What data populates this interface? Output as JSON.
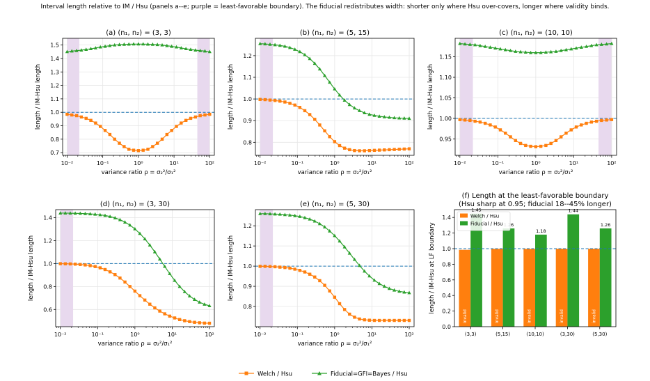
{
  "figure": {
    "suptitle": "Interval length relative to IM / Hsu (panels a--e; purple = least-favorable boundary). The fiducial redistributes width: shorter only where Hsu over-covers, longer where validity binds."
  },
  "colors": {
    "welch": "#ff7f0e",
    "fiducial": "#2ca02c",
    "reference_line": "#1f77b4",
    "lf_shade": "#e8d9ee",
    "grid": "#e6e6e6"
  },
  "legend": {
    "welch": "Welch / Hsu",
    "fiducial": "Fiducial=GFI=Bayes / Hsu"
  },
  "chart_data": [
    {
      "id": "a",
      "type": "line",
      "title": "(a) (n₁, n₂) = (3, 3)",
      "xlabel": "variance ratio ρ = σ₂²/σ₁²",
      "ylabel": "length / IM-Hsu length",
      "xscale": "log",
      "xlim": [
        0.0075,
        135
      ],
      "ylim": [
        0.68,
        1.55
      ],
      "yticks": [
        0.7,
        0.8,
        0.9,
        1.0,
        1.1,
        1.2,
        1.3,
        1.4,
        1.5
      ],
      "ytick_labels": [
        "0.7",
        "0.8",
        "0.9",
        "1.0",
        "1.1",
        "1.2",
        "1.3",
        "1.4",
        "1.5"
      ],
      "xtick_labels": [
        "10⁻²",
        "10⁻¹",
        "10⁰",
        "10¹",
        "10²"
      ],
      "lf_bands": [
        [
          0.01,
          0.022
        ],
        [
          45,
          100
        ]
      ],
      "reference_y": 1.0,
      "grid": true,
      "series": [
        {
          "name": "Welch / Hsu",
          "key": "welch",
          "marker": "square",
          "values": [
            0.985,
            0.98,
            0.975,
            0.965,
            0.955,
            0.94,
            0.92,
            0.895,
            0.865,
            0.835,
            0.8,
            0.77,
            0.745,
            0.725,
            0.718,
            0.715,
            0.718,
            0.725,
            0.745,
            0.77,
            0.8,
            0.835,
            0.865,
            0.895,
            0.92,
            0.94,
            0.955,
            0.965,
            0.975,
            0.98,
            0.985
          ]
        },
        {
          "name": "Fiducial=GFI=Bayes / Hsu",
          "key": "fiducial",
          "marker": "triangle",
          "values": [
            1.45,
            1.455,
            1.458,
            1.462,
            1.467,
            1.472,
            1.478,
            1.485,
            1.49,
            1.495,
            1.5,
            1.503,
            1.505,
            1.506,
            1.507,
            1.507,
            1.507,
            1.506,
            1.505,
            1.503,
            1.5,
            1.495,
            1.49,
            1.485,
            1.478,
            1.472,
            1.467,
            1.462,
            1.458,
            1.455,
            1.45
          ]
        }
      ]
    },
    {
      "id": "b",
      "type": "line",
      "title": "(b) (n₁, n₂) = (5, 15)",
      "xlabel": "variance ratio ρ = σ₂²/σ₁²",
      "ylabel": "length / IM-Hsu length",
      "xscale": "log",
      "xlim": [
        0.0075,
        135
      ],
      "ylim": [
        0.74,
        1.28
      ],
      "yticks": [
        0.8,
        0.9,
        1.0,
        1.1,
        1.2
      ],
      "ytick_labels": [
        "0.8",
        "0.9",
        "1.0",
        "1.1",
        "1.2"
      ],
      "xtick_labels": [
        "10⁻²",
        "10⁻¹",
        "10⁰",
        "10¹",
        "10²"
      ],
      "lf_bands": [
        [
          0.01,
          0.022
        ]
      ],
      "reference_y": 1.0,
      "grid": true,
      "series": [
        {
          "name": "Welch / Hsu",
          "key": "welch",
          "marker": "square",
          "values": [
            0.998,
            0.997,
            0.995,
            0.993,
            0.99,
            0.986,
            0.98,
            0.972,
            0.961,
            0.946,
            0.928,
            0.906,
            0.88,
            0.853,
            0.826,
            0.803,
            0.785,
            0.773,
            0.766,
            0.762,
            0.761,
            0.761,
            0.762,
            0.763,
            0.764,
            0.765,
            0.766,
            0.767,
            0.768,
            0.769,
            0.77
          ]
        },
        {
          "name": "Fiducial=GFI=Bayes / Hsu",
          "key": "fiducial",
          "marker": "triangle",
          "values": [
            1.255,
            1.254,
            1.252,
            1.25,
            1.247,
            1.243,
            1.237,
            1.229,
            1.218,
            1.204,
            1.186,
            1.164,
            1.138,
            1.108,
            1.077,
            1.046,
            1.018,
            0.994,
            0.974,
            0.958,
            0.946,
            0.936,
            0.929,
            0.924,
            0.92,
            0.917,
            0.915,
            0.913,
            0.912,
            0.911,
            0.91
          ]
        }
      ]
    },
    {
      "id": "c",
      "type": "line",
      "title": "(c) (n₁, n₂) = (10, 10)",
      "xlabel": "variance ratio ρ = σ₂²/σ₁²",
      "ylabel": "length / IM-Hsu length",
      "xscale": "log",
      "xlim": [
        0.0075,
        135
      ],
      "ylim": [
        0.91,
        1.195
      ],
      "yticks": [
        0.95,
        1.0,
        1.05,
        1.1,
        1.15
      ],
      "ytick_labels": [
        "0.95",
        "1.00",
        "1.05",
        "1.10",
        "1.15"
      ],
      "xtick_labels": [
        "10⁻²",
        "10⁻¹",
        "10⁰",
        "10¹",
        "10²"
      ],
      "lf_bands": [
        [
          0.01,
          0.022
        ],
        [
          45,
          100
        ]
      ],
      "reference_y": 1.0,
      "grid": true,
      "series": [
        {
          "name": "Welch / Hsu",
          "key": "welch",
          "marker": "square",
          "values": [
            0.997,
            0.996,
            0.995,
            0.993,
            0.991,
            0.988,
            0.984,
            0.979,
            0.972,
            0.964,
            0.955,
            0.946,
            0.939,
            0.934,
            0.932,
            0.931,
            0.932,
            0.934,
            0.939,
            0.946,
            0.955,
            0.964,
            0.972,
            0.979,
            0.984,
            0.988,
            0.991,
            0.993,
            0.995,
            0.996,
            0.997
          ]
        },
        {
          "name": "Fiducial=GFI=Bayes / Hsu",
          "key": "fiducial",
          "marker": "triangle",
          "values": [
            1.182,
            1.181,
            1.18,
            1.179,
            1.177,
            1.175,
            1.173,
            1.171,
            1.169,
            1.167,
            1.165,
            1.163,
            1.162,
            1.161,
            1.16,
            1.16,
            1.16,
            1.161,
            1.162,
            1.163,
            1.165,
            1.167,
            1.169,
            1.171,
            1.173,
            1.175,
            1.177,
            1.179,
            1.18,
            1.181,
            1.182
          ]
        }
      ]
    },
    {
      "id": "d",
      "type": "line",
      "title": "(d) (n₁, n₂) = (3, 30)",
      "xlabel": "variance ratio ρ = σ₂²/σ₁²",
      "ylabel": "length / IM-Hsu length",
      "xscale": "log",
      "xlim": [
        0.0075,
        135
      ],
      "ylim": [
        0.45,
        1.47
      ],
      "yticks": [
        0.6,
        0.8,
        1.0,
        1.2,
        1.4
      ],
      "ytick_labels": [
        "0.6",
        "0.8",
        "1.0",
        "1.2",
        "1.4"
      ],
      "xtick_labels": [
        "10⁻²",
        "10⁻¹",
        "10⁰",
        "10¹",
        "10²"
      ],
      "lf_bands": [
        [
          0.01,
          0.022
        ]
      ],
      "reference_y": 1.0,
      "grid": true,
      "series": [
        {
          "name": "Welch / Hsu",
          "key": "welch",
          "marker": "square",
          "values": [
            0.999,
            0.998,
            0.997,
            0.995,
            0.992,
            0.988,
            0.982,
            0.974,
            0.963,
            0.948,
            0.928,
            0.904,
            0.874,
            0.839,
            0.8,
            0.76,
            0.72,
            0.682,
            0.646,
            0.614,
            0.586,
            0.562,
            0.542,
            0.526,
            0.512,
            0.502,
            0.494,
            0.488,
            0.484,
            0.481,
            0.48
          ]
        },
        {
          "name": "Fiducial=GFI=Bayes / Hsu",
          "key": "fiducial",
          "marker": "triangle",
          "values": [
            1.44,
            1.44,
            1.439,
            1.438,
            1.437,
            1.435,
            1.433,
            1.43,
            1.425,
            1.419,
            1.41,
            1.398,
            1.382,
            1.361,
            1.335,
            1.302,
            1.262,
            1.215,
            1.161,
            1.102,
            1.039,
            0.975,
            0.912,
            0.853,
            0.8,
            0.755,
            0.717,
            0.687,
            0.663,
            0.645,
            0.632
          ]
        }
      ]
    },
    {
      "id": "e",
      "type": "line",
      "title": "(e) (n₁, n₂) = (5, 30)",
      "xlabel": "variance ratio ρ = σ₂²/σ₁²",
      "ylabel": "length / IM-Hsu length",
      "xscale": "log",
      "xlim": [
        0.0075,
        135
      ],
      "ylim": [
        0.7,
        1.28
      ],
      "yticks": [
        0.8,
        0.9,
        1.0,
        1.1,
        1.2
      ],
      "ytick_labels": [
        "0.8",
        "0.9",
        "1.0",
        "1.1",
        "1.2"
      ],
      "xtick_labels": [
        "10⁻²",
        "10⁻¹",
        "10⁰",
        "10¹",
        "10²"
      ],
      "lf_bands": [
        [
          0.01,
          0.022
        ]
      ],
      "reference_y": 1.0,
      "grid": true,
      "series": [
        {
          "name": "Welch / Hsu",
          "key": "welch",
          "marker": "square",
          "values": [
            0.999,
            0.999,
            0.998,
            0.997,
            0.995,
            0.993,
            0.99,
            0.985,
            0.979,
            0.971,
            0.96,
            0.946,
            0.928,
            0.905,
            0.877,
            0.846,
            0.814,
            0.785,
            0.762,
            0.747,
            0.738,
            0.734,
            0.732,
            0.731,
            0.731,
            0.731,
            0.731,
            0.731,
            0.731,
            0.731,
            0.731
          ]
        },
        {
          "name": "Fiducial=GFI=Bayes / Hsu",
          "key": "fiducial",
          "marker": "triangle",
          "values": [
            1.26,
            1.26,
            1.259,
            1.258,
            1.257,
            1.255,
            1.253,
            1.25,
            1.246,
            1.24,
            1.233,
            1.223,
            1.21,
            1.194,
            1.174,
            1.151,
            1.124,
            1.095,
            1.064,
            1.033,
            1.003,
            0.975,
            0.951,
            0.93,
            0.913,
            0.9,
            0.889,
            0.881,
            0.875,
            0.871,
            0.868
          ]
        }
      ]
    },
    {
      "id": "f",
      "type": "bar",
      "title": "(f) Length at the least-favorable boundary",
      "subtitle": "(Hsu sharp at 0.95; fiducial 18--45% longer)",
      "ylabel": "length / IM-Hsu at LF boundary",
      "categories": [
        "(3,3)",
        "(5,15)",
        "(10,10)",
        "(3,30)",
        "(5,30)"
      ],
      "ylim": [
        0,
        1.5
      ],
      "yticks": [
        0.0,
        0.2,
        0.4,
        0.6,
        0.8,
        1.0,
        1.2,
        1.4
      ],
      "ytick_labels": [
        "0.0",
        "0.2",
        "0.4",
        "0.6",
        "0.8",
        "1.0",
        "1.2",
        "1.4"
      ],
      "reference_y": 1.0,
      "legend_position": "top-left",
      "series": [
        {
          "name": "Welch / Hsu",
          "key": "welch",
          "values": [
            0.985,
            0.998,
            0.997,
            0.999,
            0.999
          ],
          "bar_labels": [
            "invalid",
            "invalid",
            "invalid",
            "invalid",
            "invalid"
          ]
        },
        {
          "name": "Fiducial / Hsu",
          "key": "fiducial",
          "values": [
            1.45,
            1.26,
            1.18,
            1.44,
            1.26
          ],
          "value_labels": [
            "1.45",
            "1.26",
            "1.18",
            "1.44",
            "1.26"
          ]
        }
      ]
    }
  ]
}
